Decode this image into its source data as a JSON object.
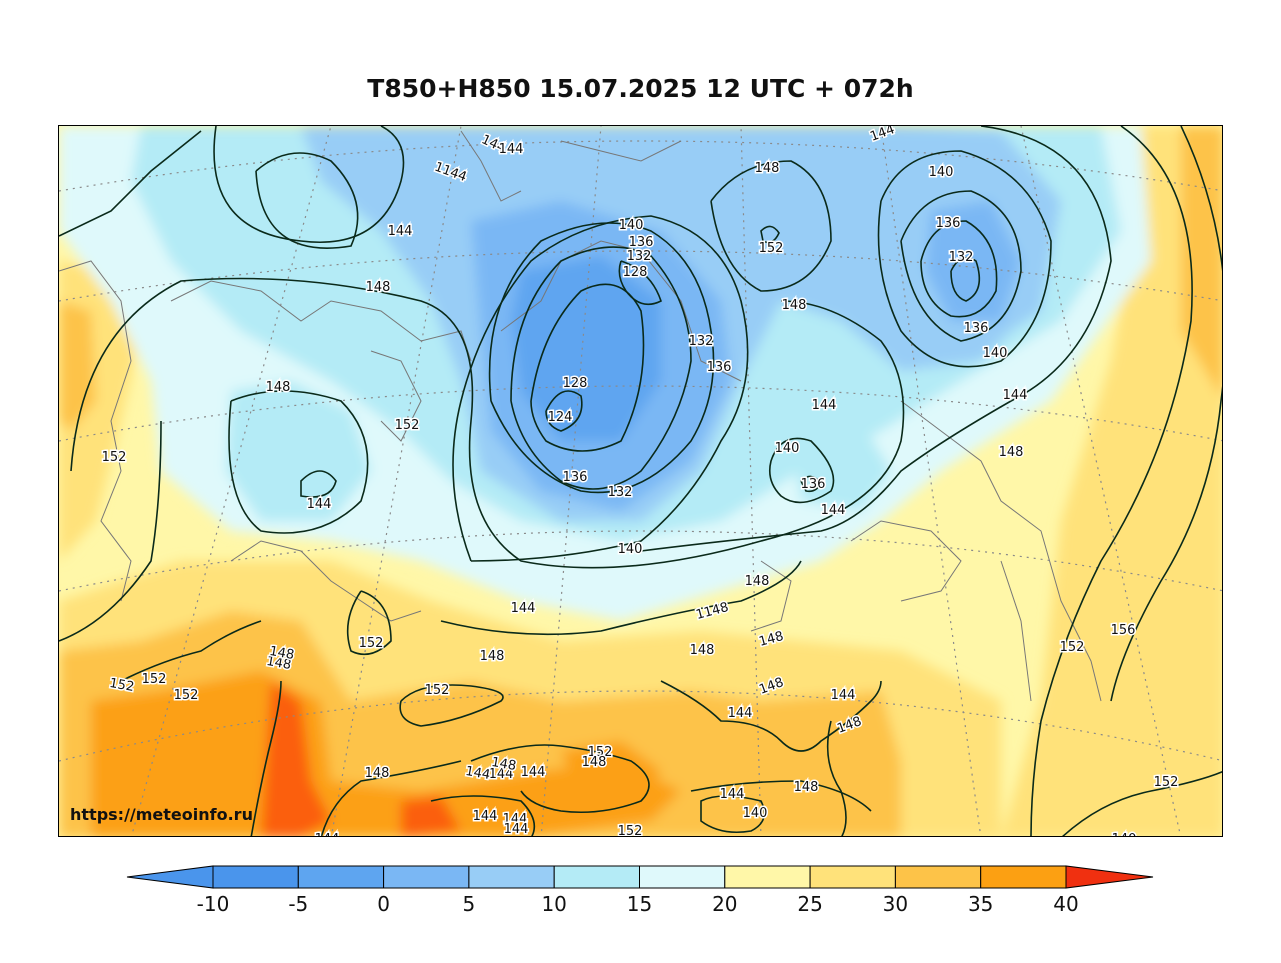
{
  "title": "T850+H850 15.07.2025 12 UTC + 072h",
  "watermark": "https://meteoinfo.ru",
  "colorbar": {
    "ticks": [
      "-10",
      "-5",
      "0",
      "5",
      "10",
      "15",
      "20",
      "25",
      "30",
      "35",
      "40"
    ],
    "colors": [
      "#4a95ec",
      "#5ea5f0",
      "#7ab7f4",
      "#98cdf6",
      "#b4ebf6",
      "#dff9fb",
      "#fff7a8",
      "#ffe27a",
      "#fdc348",
      "#fca012",
      "#fb5f0e",
      "#f33312"
    ],
    "under_color": "#4a95ec",
    "over_color": "#f03010"
  },
  "contour_labels": [
    "144",
    "144",
    "1144",
    "144",
    "148",
    "140",
    "136",
    "132",
    "128",
    "148",
    "152",
    "148",
    "140",
    "136",
    "132",
    "136",
    "140",
    "132",
    "136",
    "148",
    "128",
    "124",
    "152",
    "144",
    "152",
    "136",
    "132",
    "140",
    "136",
    "144",
    "140",
    "148",
    "144",
    "148",
    "144",
    "148",
    "1148",
    "144",
    "148",
    "152",
    "156",
    "152",
    "148",
    "152",
    "152",
    "152",
    "148",
    "152",
    "144",
    "144",
    "148",
    "148",
    "152",
    "148",
    "144",
    "144",
    "144",
    "148",
    "148",
    "152",
    "144",
    "144",
    "144",
    "144",
    "140",
    "148",
    "152",
    "148",
    "144",
    "144",
    "140"
  ]
}
